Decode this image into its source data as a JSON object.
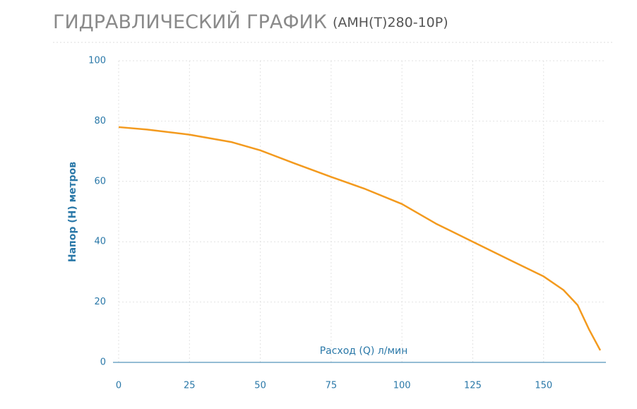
{
  "chart_data": {
    "type": "line",
    "title": "ГИДРАВЛИЧЕСКИЙ ГРАФИК",
    "subtitle": "(АМН(Т)280-10Р)",
    "x_label": "Расход (Q) л/мин",
    "y_label": "Напор (H) метров",
    "x": [
      0,
      10,
      25,
      40,
      50,
      62,
      75,
      87,
      100,
      112,
      125,
      138,
      150,
      157,
      162,
      166,
      170
    ],
    "series": [
      {
        "color": "#f39a1e",
        "values": [
          78,
          77.2,
          75.5,
          73,
          70.3,
          66,
          61.5,
          57.5,
          52.5,
          46,
          40,
          34,
          28.5,
          24,
          19,
          11,
          4
        ]
      }
    ],
    "xlim": [
      0,
      172
    ],
    "xticks": [
      0,
      25,
      50,
      75,
      100,
      125,
      150
    ],
    "ylim": [
      0,
      100
    ],
    "yticks": [
      0,
      20,
      40,
      60,
      80,
      100
    ],
    "grid": true
  }
}
